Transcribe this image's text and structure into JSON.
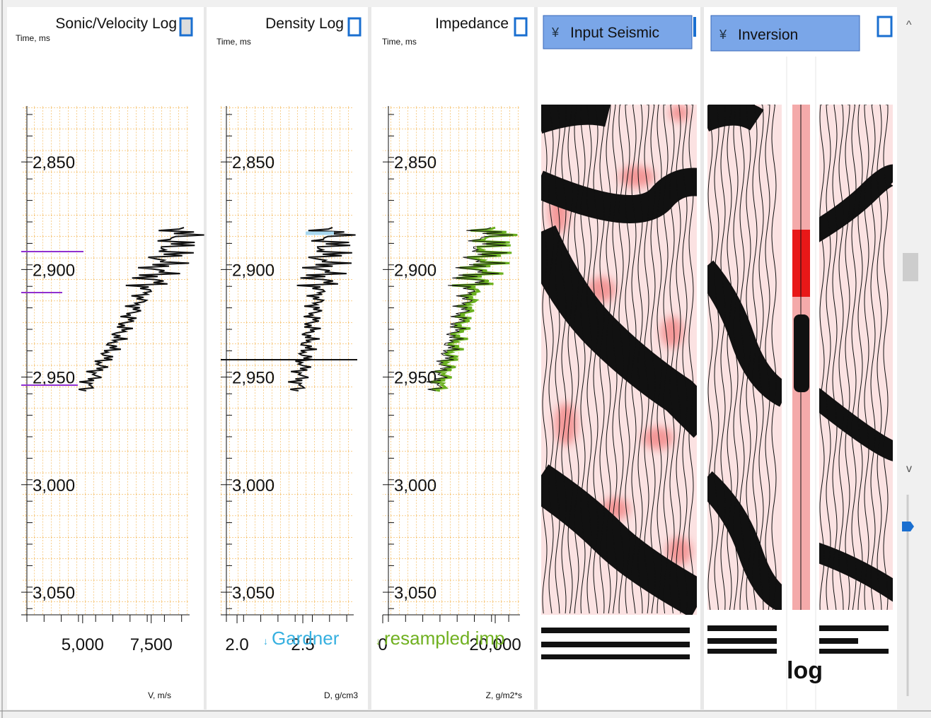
{
  "panels": [
    {
      "title": "Sonic/Velocity Log",
      "y_axis_label": "Time, ms",
      "x_axis_label": "V, m/s",
      "ylim": [
        2824,
        3060.5
      ],
      "yticks": [
        {
          "value": 2850,
          "label": "2,850"
        },
        {
          "value": 2900,
          "label": "2,900"
        },
        {
          "value": 2950,
          "label": "2,950"
        },
        {
          "value": 3000,
          "label": "3,000"
        },
        {
          "value": 3050,
          "label": "3,050"
        }
      ],
      "xlim": [
        2760,
        8900
      ],
      "xticks": [
        {
          "value": 5000,
          "label": "5,000"
        },
        {
          "value": 7500,
          "label": "7,500"
        }
      ]
    },
    {
      "title": "Density Log",
      "y_axis_label": "Time, ms",
      "x_axis_label": "D, g/cm3",
      "legend": "Gardner",
      "ylim": [
        2824,
        3060.5
      ],
      "yticks": [
        {
          "value": 2850,
          "label": "2,850"
        },
        {
          "value": 2900,
          "label": "2,900"
        },
        {
          "value": 2950,
          "label": "2,950"
        },
        {
          "value": 3000,
          "label": "3,000"
        },
        {
          "value": 3050,
          "label": "3,050"
        }
      ],
      "xlim": [
        1.876,
        2.887
      ],
      "xticks": [
        {
          "value": 2,
          "label": "2.0"
        },
        2.5
      ]
    },
    {
      "title": "Impedance",
      "y_axis_label": "Time, ms",
      "x_axis_label": "Z, g/m2*s",
      "legend": "resampled imp",
      "ylim": [
        2824,
        3060.5
      ],
      "yticks": [
        {
          "value": 2850,
          "label": "2,850"
        },
        {
          "value": 2900,
          "label": "2,900"
        },
        {
          "value": 2950,
          "label": "2,950"
        },
        {
          "value": 3000,
          "label": "3,000"
        },
        {
          "value": 3050,
          "label": "3,050"
        }
      ],
      "xlim": [
        0,
        24400
      ],
      "xticks": [
        0,
        {
          "value": 20000,
          "label": "20,000"
        }
      ]
    }
  ],
  "seismic": {
    "input_button": "Input Seismic",
    "inversion_button": "Inversion",
    "log_label": "log"
  }
}
